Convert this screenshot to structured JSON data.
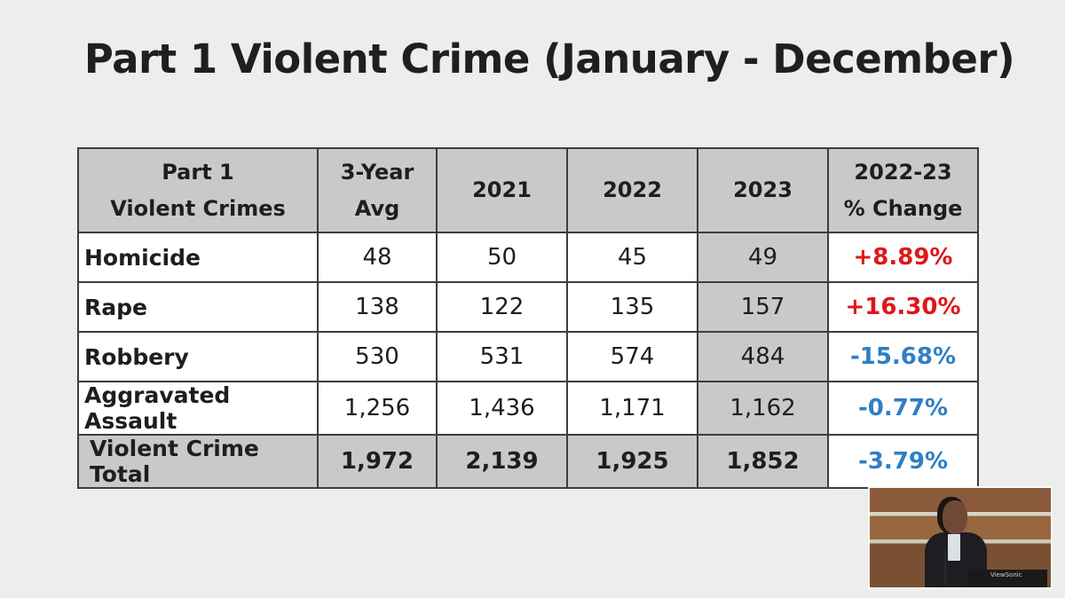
{
  "slide": {
    "title": "Part 1 Violent Crime (January - December)"
  },
  "table": {
    "header": {
      "label_line1": "Part 1",
      "label_line2": "Violent Crimes",
      "avg_line1": "3-Year",
      "avg_line2": "Avg",
      "y2021": "2021",
      "y2022": "2022",
      "y2023": "2023",
      "change_line1": "2022-23",
      "change_line2": "% Change"
    },
    "rows": [
      {
        "label": "Homicide",
        "avg": "48",
        "y2021": "50",
        "y2022": "45",
        "y2023": "49",
        "change": "+8.89%"
      },
      {
        "label": "Rape",
        "avg": "138",
        "y2021": "122",
        "y2022": "135",
        "y2023": "157",
        "change": "+16.30%"
      },
      {
        "label": "Robbery",
        "avg": "530",
        "y2021": "531",
        "y2022": "574",
        "y2023": "484",
        "change": "-15.68%"
      },
      {
        "label": "Aggravated Assault",
        "avg": "1,256",
        "y2021": "1,436",
        "y2022": "1,171",
        "y2023": "1,162",
        "change": "-0.77%"
      }
    ],
    "total": {
      "label": "Violent Crime Total",
      "avg": "1,972",
      "y2021": "2,139",
      "y2022": "1,925",
      "y2023": "1,852",
      "change": "-3.79%"
    }
  },
  "colors": {
    "increase": "#e0161b",
    "decrease": "#2f7fc5",
    "header_fill": "#c9c9c9"
  },
  "webcam": {
    "monitor_brand": "ViewSonic"
  }
}
